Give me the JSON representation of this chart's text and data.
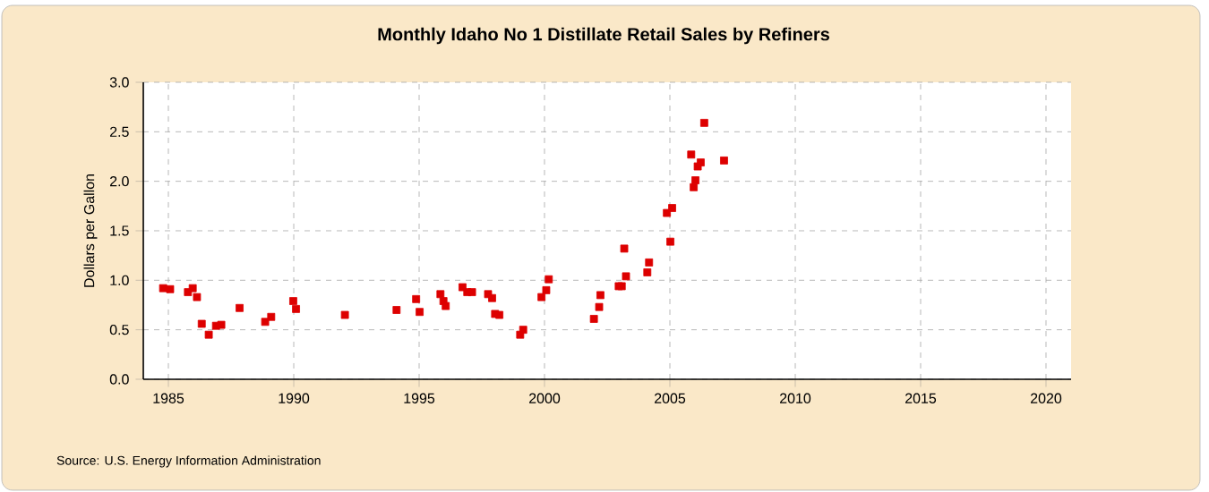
{
  "chart_data": {
    "type": "scatter",
    "title": "Monthly Idaho No 1 Distillate Retail Sales by Refiners",
    "ylabel": "Dollars per Gallon",
    "annotations": [
      "Source: U.S. Energy Information Administration"
    ],
    "x": [
      1984.79,
      1985.07,
      1985.78,
      1985.97,
      1986.14,
      1986.33,
      1986.61,
      1986.9,
      1987.11,
      1987.84,
      1988.86,
      1989.1,
      1989.98,
      1990.09,
      1992.04,
      1994.1,
      1994.88,
      1995.02,
      1995.85,
      1995.97,
      1996.06,
      1996.73,
      1996.92,
      1997.11,
      1997.75,
      1997.91,
      1998.03,
      1998.2,
      1999.03,
      1999.15,
      1999.88,
      2000.07,
      2000.17,
      2001.97,
      2002.18,
      2002.23,
      2002.96,
      2003.08,
      2003.18,
      2003.25,
      2004.1,
      2004.17,
      2004.88,
      2005.02,
      2005.09,
      2005.85,
      2005.95,
      2006.02,
      2006.11,
      2006.23,
      2006.37,
      2007.16
    ],
    "values": [
      0.92,
      0.91,
      0.88,
      0.92,
      0.83,
      0.56,
      0.45,
      0.54,
      0.55,
      0.72,
      0.58,
      0.63,
      0.79,
      0.71,
      0.65,
      0.7,
      0.81,
      0.68,
      0.86,
      0.79,
      0.74,
      0.93,
      0.88,
      0.88,
      0.86,
      0.82,
      0.66,
      0.65,
      0.45,
      0.5,
      0.83,
      0.9,
      1.01,
      0.61,
      0.73,
      0.85,
      0.94,
      0.94,
      1.32,
      1.04,
      1.08,
      1.18,
      1.68,
      1.39,
      1.73,
      2.27,
      1.94,
      2.01,
      2.15,
      2.19,
      2.59,
      2.21
    ],
    "color": "#dd0000",
    "marker": "square",
    "grid": true,
    "xlim": [
      1984,
      2021
    ],
    "xticks": [
      1985,
      1990,
      1995,
      2000,
      2005,
      2010,
      2015,
      2020
    ],
    "ylim": [
      0,
      3
    ],
    "yticks": [
      {
        "value": 0,
        "label": "0.0"
      },
      {
        "value": 0.5,
        "label": "0.5"
      },
      {
        "value": 1,
        "label": "1.0"
      },
      {
        "value": 1.5,
        "label": "1.5"
      },
      {
        "value": 2,
        "label": "2.0"
      },
      {
        "value": 2.5,
        "label": "2.5"
      },
      {
        "value": 3,
        "label": "3.0"
      }
    ]
  }
}
